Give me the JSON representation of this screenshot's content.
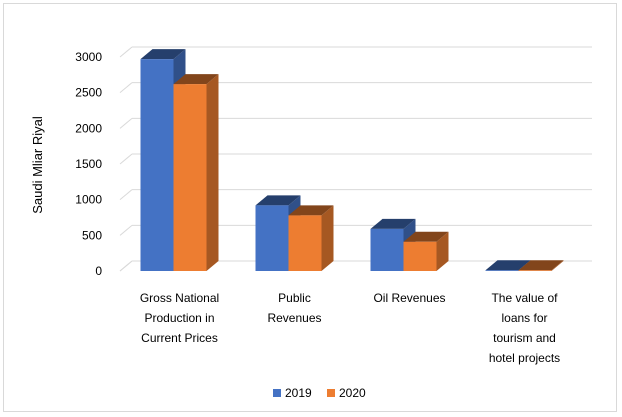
{
  "chart_data": {
    "type": "bar",
    "style": "3d-clustered-column",
    "ylabel": "Saudi Mliar Riyal",
    "ylim": [
      0,
      3000
    ],
    "yticks": [
      0,
      500,
      1000,
      1500,
      2000,
      2500,
      3000
    ],
    "grid": true,
    "legend_position": "bottom",
    "categories": [
      [
        "Gross National",
        "Production in",
        "Current Prices"
      ],
      [
        "Public",
        "Revenues"
      ],
      [
        "Oil Revenues"
      ],
      [
        "The value of",
        "loans for",
        "tourism and",
        "hotel projects"
      ]
    ],
    "series": [
      {
        "name": "2019",
        "color": "#4472C4",
        "values": [
          2970,
          920,
          590,
          10
        ]
      },
      {
        "name": "2020",
        "color": "#ED7D31",
        "values": [
          2620,
          780,
          410,
          10
        ]
      }
    ]
  }
}
